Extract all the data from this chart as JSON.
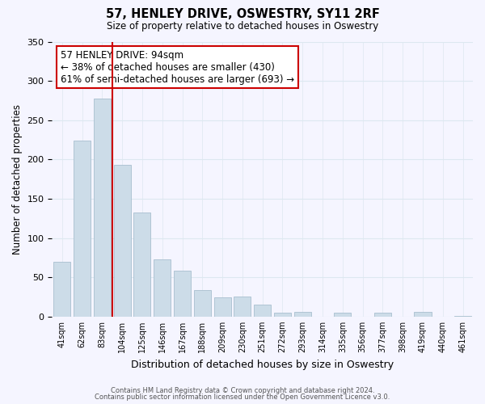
{
  "title": "57, HENLEY DRIVE, OSWESTRY, SY11 2RF",
  "subtitle": "Size of property relative to detached houses in Oswestry",
  "xlabel": "Distribution of detached houses by size in Oswestry",
  "ylabel": "Number of detached properties",
  "bar_labels": [
    "41sqm",
    "62sqm",
    "83sqm",
    "104sqm",
    "125sqm",
    "146sqm",
    "167sqm",
    "188sqm",
    "209sqm",
    "230sqm",
    "251sqm",
    "272sqm",
    "293sqm",
    "314sqm",
    "335sqm",
    "356sqm",
    "377sqm",
    "398sqm",
    "419sqm",
    "440sqm",
    "461sqm"
  ],
  "bar_values": [
    70,
    224,
    278,
    193,
    132,
    73,
    58,
    34,
    24,
    25,
    15,
    5,
    6,
    0,
    5,
    0,
    5,
    0,
    6,
    0,
    1
  ],
  "bar_color": "#ccdce8",
  "bar_edge_color": "#a8bfcf",
  "vline_color": "#cc0000",
  "vline_x_index": 2.5,
  "ylim": [
    0,
    350
  ],
  "yticks": [
    0,
    50,
    100,
    150,
    200,
    250,
    300,
    350
  ],
  "annotation_title": "57 HENLEY DRIVE: 94sqm",
  "annotation_line1": "← 38% of detached houses are smaller (430)",
  "annotation_line2": "61% of semi-detached houses are larger (693) →",
  "annotation_box_color": "white",
  "annotation_box_edge": "#cc0000",
  "footer1": "Contains HM Land Registry data © Crown copyright and database right 2024.",
  "footer2": "Contains public sector information licensed under the Open Government Licence v3.0.",
  "bg_color": "#f5f5ff",
  "grid_color": "#dde8f0"
}
